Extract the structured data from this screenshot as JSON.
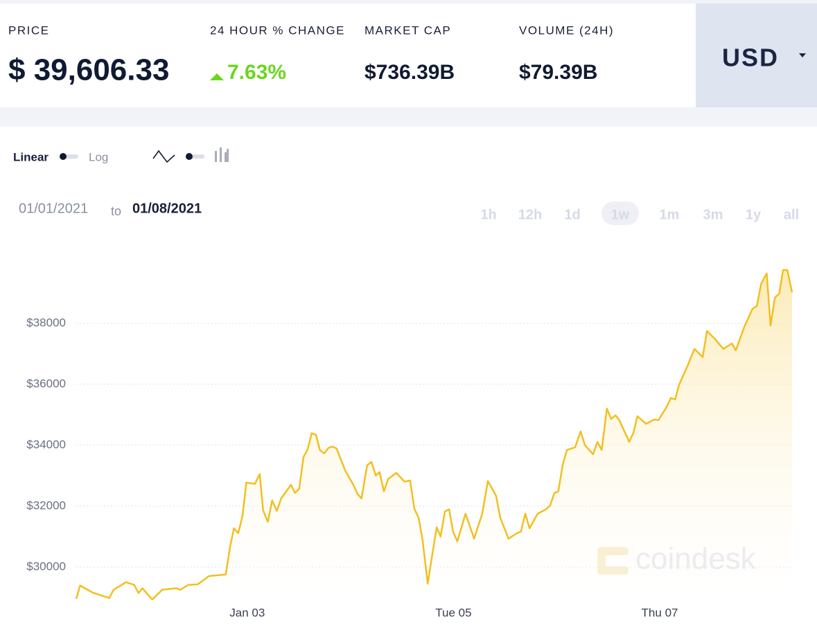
{
  "header": {
    "price_label": "PRICE",
    "price": "$ 39,606.33",
    "change_label": "24 HOUR % CHANGE",
    "change": "7.63%",
    "market_cap_label": "MARKET CAP",
    "market_cap": "$736.39B",
    "volume_label": "VOLUME (24H)",
    "volume": "$79.39B",
    "currency": "USD"
  },
  "controls": {
    "linear": "Linear",
    "log": "Log",
    "date_from": "01/01/2021",
    "date_to_word": "to",
    "date_to": "01/08/2021",
    "ranges": [
      "1h",
      "12h",
      "1d",
      "1w",
      "1m",
      "3m",
      "1y",
      "all"
    ],
    "selected_range": "1w"
  },
  "watermark": "coindesk",
  "chart_data": {
    "type": "line",
    "color": "#f2bf1f",
    "grid": true,
    "x": [
      8.2,
      9.1,
      12.0,
      15.9,
      16.9,
      19.8,
      21.7,
      22.7,
      23.6,
      25.9,
      28.2,
      31.4,
      32.4,
      34.3,
      36.5,
      39.1,
      43.0,
      44.0,
      44.9,
      45.9,
      46.9,
      47.8,
      49.8,
      50.9,
      51.7,
      52.8,
      53.8,
      54.9,
      55.9,
      58.2,
      59.1,
      60.1,
      61.1,
      62.0,
      63.0,
      64.0,
      64.9,
      65.9,
      66.9,
      67.8,
      68.8,
      70.8,
      72.7,
      73.7,
      74.6,
      75.9,
      76.9,
      77.9,
      78.8,
      79.8,
      80.8,
      82.7,
      84.6,
      85.9,
      86.9,
      87.9,
      88.8,
      90.0,
      91.1,
      92.1,
      93.0,
      94.0,
      95.0,
      95.9,
      96.9,
      98.8,
      100.8,
      102.7,
      104.0,
      105.9,
      106.9,
      108.8,
      110.8,
      111.7,
      112.7,
      113.7,
      115.6,
      117.5,
      118.5,
      119.5,
      120.4,
      121.4,
      122.4,
      124.3,
      125.6,
      126.6,
      128.5,
      129.5,
      130.5,
      131.7,
      132.7,
      133.7,
      134.6,
      136.9,
      137.9,
      138.8,
      140.8,
      142.7,
      143.7,
      145.6,
      146.6,
      147.6,
      148.5,
      150.5,
      152.1,
      154.0,
      155.0,
      156.9,
      158.8,
      160.8,
      161.7,
      163.7,
      165.6,
      166.6,
      167.6,
      168.9,
      169.8,
      170.8,
      171.8,
      172.7,
      173.7,
      174.8
    ],
    "values": [
      28950,
      29390,
      29160,
      28980,
      29250,
      29500,
      29410,
      29140,
      29300,
      28930,
      29250,
      29300,
      29250,
      29410,
      29430,
      29700,
      29750,
      30660,
      31270,
      31110,
      31680,
      32770,
      32730,
      33050,
      31860,
      31480,
      32180,
      31840,
      32250,
      32700,
      32430,
      32570,
      33610,
      33840,
      34390,
      34340,
      33840,
      33730,
      33910,
      33950,
      33890,
      33160,
      32700,
      32390,
      32250,
      33340,
      33450,
      33000,
      33110,
      32480,
      32890,
      33090,
      32800,
      32840,
      31910,
      31610,
      30890,
      29450,
      30430,
      31300,
      31000,
      31820,
      31890,
      31160,
      30840,
      31750,
      30930,
      31750,
      32820,
      32340,
      31610,
      30930,
      31110,
      31160,
      31750,
      31270,
      31750,
      31890,
      32020,
      32430,
      32480,
      33340,
      33840,
      33930,
      34450,
      34000,
      33700,
      34110,
      33840,
      35200,
      34860,
      34980,
      34820,
      34110,
      34410,
      34950,
      34700,
      34840,
      34820,
      35250,
      35550,
      35500,
      35980,
      36610,
      37160,
      36890,
      37750,
      37480,
      37160,
      37340,
      37110,
      37890,
      38480,
      38570,
      39300,
      39640,
      37930,
      38840,
      38980,
      39750,
      39750,
      39020
    ],
    "xlim": [
      8.2,
      174.8
    ],
    "ylim": [
      28950,
      39750
    ],
    "xticks": [
      {
        "value": 48,
        "label": "Jan 03"
      },
      {
        "value": 96,
        "label": "Tue 05"
      },
      {
        "value": 144,
        "label": "Thu 07"
      }
    ],
    "yticks": [
      {
        "value": 30000,
        "label": "$30000"
      },
      {
        "value": 32000,
        "label": "$32000"
      },
      {
        "value": 34000,
        "label": "$34000"
      },
      {
        "value": 36000,
        "label": "$36000"
      },
      {
        "value": 38000,
        "label": "$38000"
      }
    ]
  }
}
